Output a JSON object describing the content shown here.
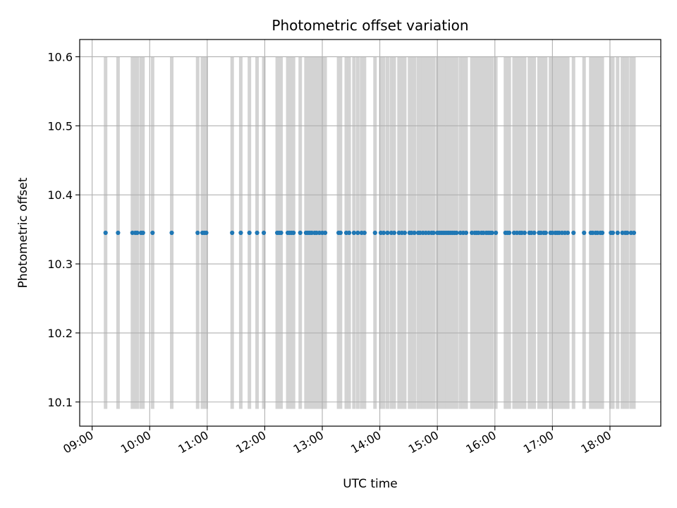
{
  "chart_data": {
    "type": "scatter",
    "title": "Photometric offset variation",
    "xlabel": "UTC time",
    "ylabel": "Photometric offset",
    "x_ticks": [
      "09:00",
      "10:00",
      "11:00",
      "12:00",
      "13:00",
      "14:00",
      "15:00",
      "16:00",
      "17:00",
      "18:00"
    ],
    "y_ticks": [
      "10.1",
      "10.2",
      "10.3",
      "10.4",
      "10.5",
      "10.6"
    ],
    "xlim": [
      "08:47",
      "18:53"
    ],
    "ylim": [
      10.065,
      10.625
    ],
    "grid": true,
    "colors": {
      "points": "#1f77b4",
      "bars": "#d3d3d3",
      "grid": "#b0b0b0"
    },
    "constant_offset": 10.345,
    "shaded_interval_range": [
      10.09,
      10.6
    ],
    "times": [
      "09:14",
      "09:27",
      "09:42",
      "09:45",
      "09:47",
      "09:51",
      "09:53",
      "10:03",
      "10:23",
      "10:50",
      "10:55",
      "10:57",
      "10:59",
      "11:26",
      "11:35",
      "11:44",
      "11:52",
      "11:59",
      "12:13",
      "12:15",
      "12:17",
      "12:24",
      "12:26",
      "12:28",
      "12:30",
      "12:37",
      "12:43",
      "12:45",
      "12:47",
      "12:49",
      "12:52",
      "12:54",
      "12:57",
      "13:00",
      "13:03",
      "13:17",
      "13:19",
      "13:25",
      "13:28",
      "13:33",
      "13:37",
      "13:41",
      "13:44",
      "13:55",
      "14:01",
      "14:04",
      "14:08",
      "14:12",
      "14:15",
      "14:20",
      "14:23",
      "14:26",
      "14:31",
      "14:33",
      "14:36",
      "14:40",
      "14:42",
      "14:45",
      "14:48",
      "14:51",
      "14:54",
      "14:56",
      "15:00",
      "15:02",
      "15:04",
      "15:06",
      "15:08",
      "15:10",
      "15:12",
      "15:14",
      "15:16",
      "15:18",
      "15:20",
      "15:24",
      "15:27",
      "15:30",
      "15:36",
      "15:39",
      "15:41",
      "15:43",
      "15:46",
      "15:48",
      "15:51",
      "15:53",
      "15:55",
      "15:57",
      "16:01",
      "16:11",
      "16:13",
      "16:15",
      "16:20",
      "16:23",
      "16:26",
      "16:28",
      "16:31",
      "16:36",
      "16:38",
      "16:41",
      "16:46",
      "16:48",
      "16:51",
      "16:53",
      "16:58",
      "17:00",
      "17:03",
      "17:05",
      "17:07",
      "17:10",
      "17:13",
      "17:16",
      "17:22",
      "17:33",
      "17:40",
      "17:42",
      "17:45",
      "17:47",
      "17:50",
      "17:52",
      "18:01",
      "18:03",
      "18:08",
      "18:13",
      "18:16",
      "18:18",
      "18:22",
      "18:25"
    ]
  }
}
